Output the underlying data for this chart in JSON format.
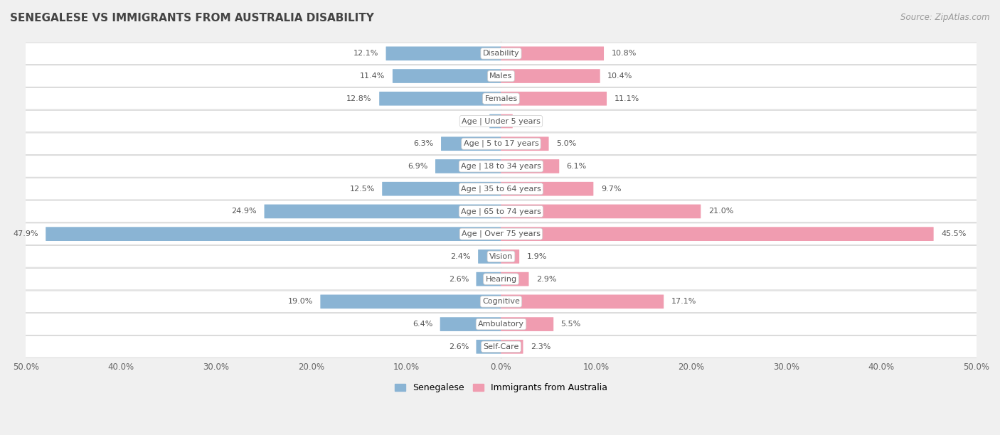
{
  "title": "SENEGALESE VS IMMIGRANTS FROM AUSTRALIA DISABILITY",
  "source": "Source: ZipAtlas.com",
  "categories": [
    "Disability",
    "Males",
    "Females",
    "Age | Under 5 years",
    "Age | 5 to 17 years",
    "Age | 18 to 34 years",
    "Age | 35 to 64 years",
    "Age | 65 to 74 years",
    "Age | Over 75 years",
    "Vision",
    "Hearing",
    "Cognitive",
    "Ambulatory",
    "Self-Care"
  ],
  "senegalese": [
    12.1,
    11.4,
    12.8,
    1.2,
    6.3,
    6.9,
    12.5,
    24.9,
    47.9,
    2.4,
    2.6,
    19.0,
    6.4,
    2.6
  ],
  "australia": [
    10.8,
    10.4,
    11.1,
    1.2,
    5.0,
    6.1,
    9.7,
    21.0,
    45.5,
    1.9,
    2.9,
    17.1,
    5.5,
    2.3
  ],
  "senegalese_color": "#8ab4d4",
  "australia_color": "#f09cb0",
  "axis_max": 50.0,
  "bg_color": "#f0f0f0",
  "row_color_light": "#f8f8f8",
  "row_color_dark": "#e8e8e8",
  "bar_height": 0.58,
  "legend_senegalese": "Senegalese",
  "legend_australia": "Immigrants from Australia"
}
